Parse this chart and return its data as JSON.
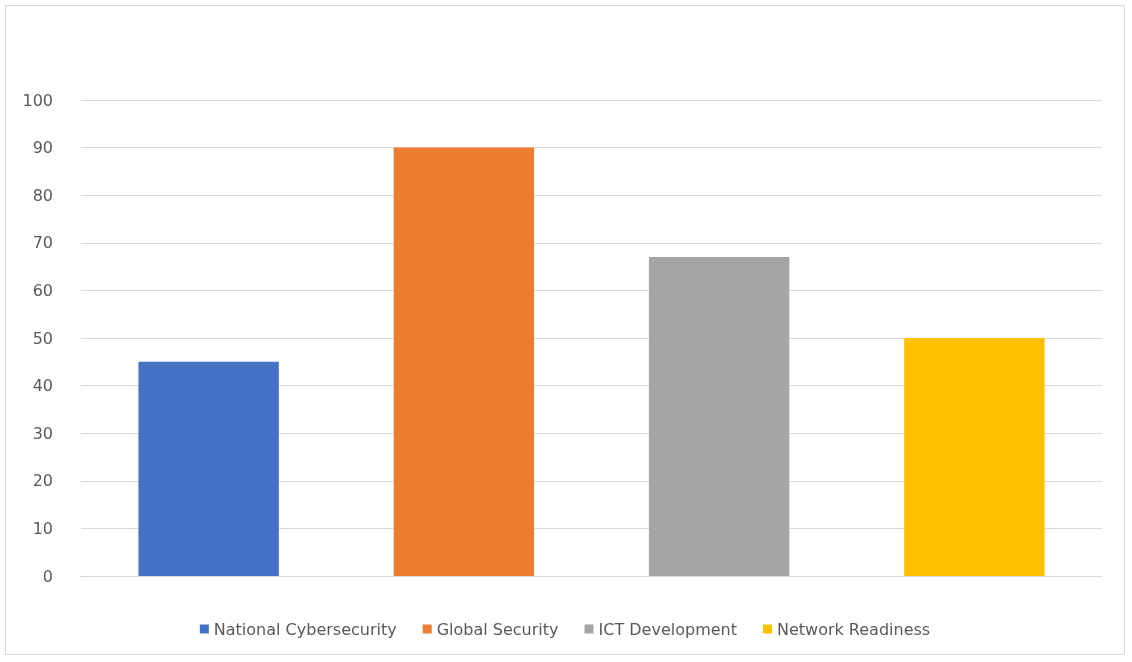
{
  "chart_data": {
    "type": "bar",
    "categories": [
      null,
      null,
      null,
      null
    ],
    "series": [
      {
        "name": "National Cybersecurity",
        "color": "#4472c4",
        "values": [
          45,
          null,
          null,
          null
        ]
      },
      {
        "name": "Global Security",
        "color": "#ed7d31",
        "values": [
          null,
          90,
          null,
          null
        ]
      },
      {
        "name": "ICT Development",
        "color": "#a5a5a5",
        "values": [
          null,
          null,
          67,
          null
        ]
      },
      {
        "name": "Network Readiness",
        "color": "#ffc000",
        "values": [
          null,
          null,
          null,
          50
        ]
      }
    ],
    "ylim": [
      0,
      100
    ],
    "yticks": [
      0,
      10,
      20,
      30,
      40,
      50,
      60,
      70,
      80,
      90,
      100
    ],
    "grid": "y",
    "legend": "bottom"
  }
}
